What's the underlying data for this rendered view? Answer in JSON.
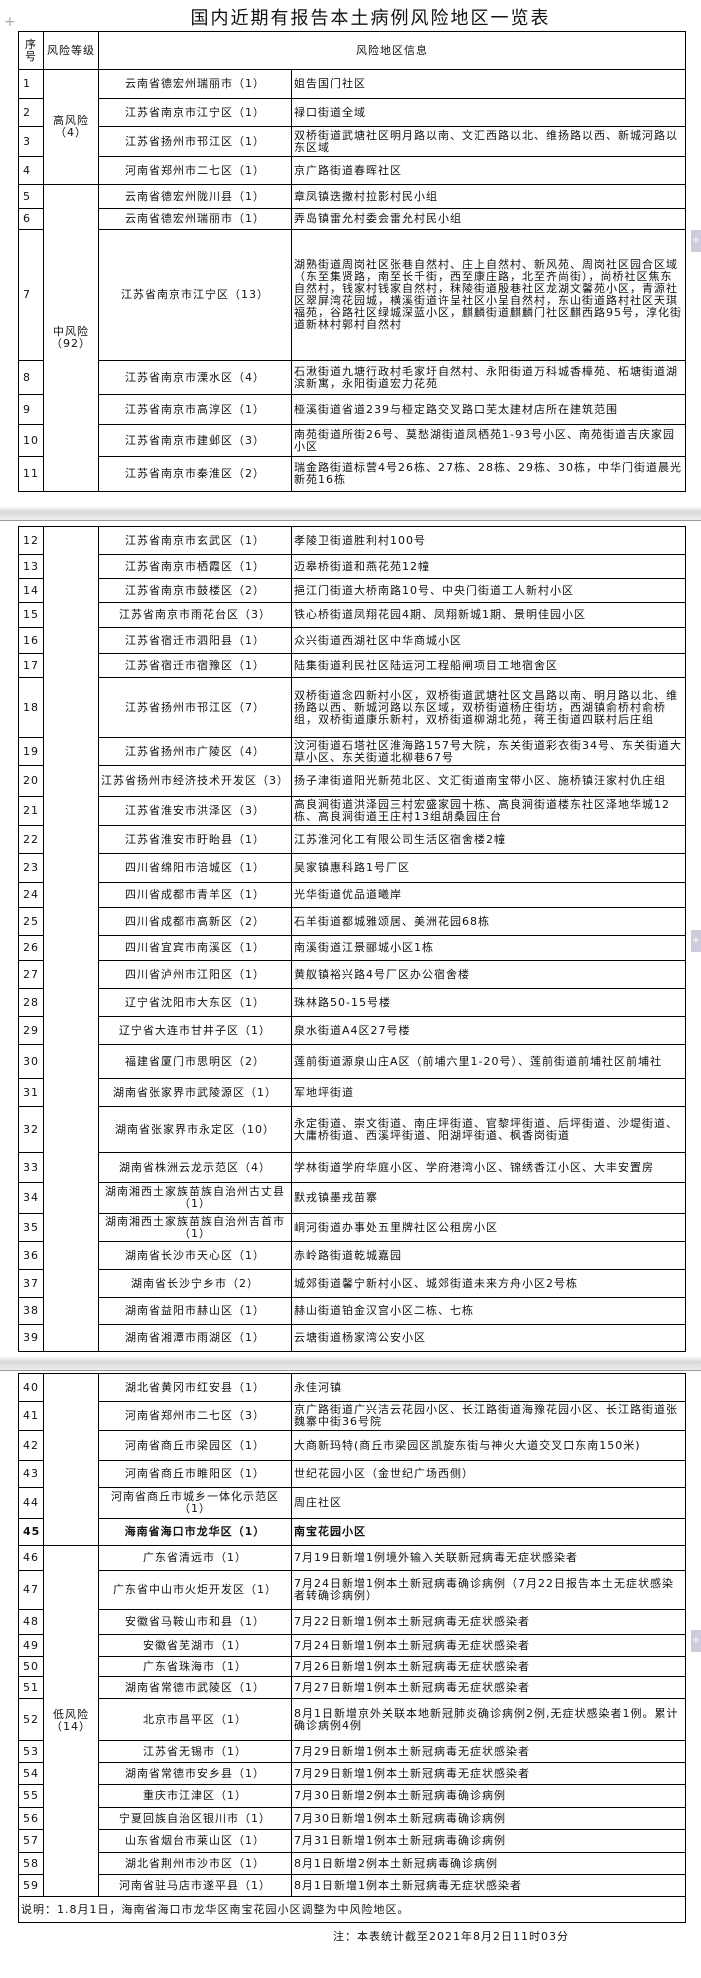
{
  "title": "国内近期有报告本土病例风险地区一览表",
  "header": {
    "no": "序号",
    "level": "风险等级",
    "info": "风险地区信息"
  },
  "levels": {
    "high": "高风险（4）",
    "medium": "中风险（92）",
    "low": "低风险（14）"
  },
  "rows": [
    {
      "no": "1",
      "region": "云南省德宏州瑞丽市（1）",
      "info": "姐告国门社区"
    },
    {
      "no": "2",
      "region": "江苏省南京市江宁区（1）",
      "info": "禄口街道全域"
    },
    {
      "no": "3",
      "region": "江苏省扬州市邗江区（1）",
      "info": "双桥街道武塘社区明月路以南、文汇西路以北、维扬路以西、新城河路以东区域"
    },
    {
      "no": "4",
      "region": "河南省郑州市二七区（1）",
      "info": "京广路街道春晖社区"
    },
    {
      "no": "5",
      "region": "云南省德宏州陇川县（1）",
      "info": "章凤镇迭撒村拉影村民小组"
    },
    {
      "no": "6",
      "region": "云南省德宏州瑞丽市（1）",
      "info": "弄岛镇雷允村委会雷允村民小组"
    },
    {
      "no": "7",
      "region": "江苏省南京市江宁区（13）",
      "info": "湖熟街道周岗社区张巷自然村、庄上自然村、新风苑、周岗社区园合区域（东至集贤路，南至长千街，西至康庄路，北至齐尚街），尚桥社区焦东自然村，钱家村钱家自然村，秣陵街道殷巷社区龙湖文馨苑小区，青源社区翠屏湾花园城，横溪街道许呈社区小呈自然村，东山街道路村社区天琪福苑，谷路社区绿城深蓝小区，麒麟街道麒麟门社区麒西路95号，淳化街道新林村郭村自然村"
    },
    {
      "no": "8",
      "region": "江苏省南京市溧水区（4）",
      "info": "石湫街道九塘行政村毛家圩自然村、永阳街道万科城香樟苑、柘塘街道湖滨新寓，永阳街道宏力花苑"
    },
    {
      "no": "9",
      "region": "江苏省南京市高淳区（1）",
      "info": "桠溪街道省道239与桠定路交叉路口芜太建材店所在建筑范围"
    },
    {
      "no": "10",
      "region": "江苏省南京市建邺区（3）",
      "info": "南苑街道所街26号、莫愁湖街道凤栖苑1-93号小区、南苑街道吉庆家园小区"
    },
    {
      "no": "11",
      "region": "江苏省南京市秦淮区（2）",
      "info": "瑞金路街道标营4号26栋、27栋、28栋、29栋、30栋，中华门街道晨光新苑16栋"
    },
    {
      "no": "12",
      "region": "江苏省南京市玄武区（1）",
      "info": "孝陵卫街道胜利村100号"
    },
    {
      "no": "13",
      "region": "江苏省南京市栖霞区（1）",
      "info": "迈皋桥街道和燕花苑12幢"
    },
    {
      "no": "14",
      "region": "江苏省南京市鼓楼区（2）",
      "info": "挹江门街道大桥南路10号、中央门街道工人新村小区"
    },
    {
      "no": "15",
      "region": "江苏省南京市雨花台区（3）",
      "info": "铁心桥街道凤翔花园4期、凤翔新城1期、景明佳园小区"
    },
    {
      "no": "16",
      "region": "江苏省宿迁市泗阳县（1）",
      "info": "众兴街道西湖社区中华商城小区"
    },
    {
      "no": "17",
      "region": "江苏省宿迁市宿豫区（1）",
      "info": "陆集街道利民社区陆运河工程船闸项目工地宿舍区"
    },
    {
      "no": "18",
      "region": "江苏省扬州市邗江区（7）",
      "info": "双桥街道念四新村小区，双桥街道武塘社区文昌路以南、明月路以北、维扬路以西、新城河路以东区域，双桥街道杨庄街坊，西湖镇俞桥村俞桥组，双桥街道康乐新村，双桥街道柳湖北苑，蒋王街道四联村后庄组"
    },
    {
      "no": "19",
      "region": "江苏省扬州市广陵区（4）",
      "info": "汶河街道石塔社区淮海路157号大院，东关街道彩衣街34号、东关街道大草小区、东关街道北柳巷67号"
    },
    {
      "no": "20",
      "region": "江苏省扬州市经济技术开发区（3）",
      "info": "扬子津街道阳光新苑北区、文汇街道南宝带小区、施桥镇汪家村仇庄组"
    },
    {
      "no": "21",
      "region": "江苏省淮安市洪泽区（3）",
      "info": "高良涧街道洪泽园三村宏盛家园十栋、高良涧街道楼东社区泽地华城12栋、高良涧街道王庄村13组胡桑园庄台"
    },
    {
      "no": "22",
      "region": "江苏省淮安市盱眙县（1）",
      "info": "江苏淮河化工有限公司生活区宿舍楼2幢"
    },
    {
      "no": "23",
      "region": "四川省绵阳市涪城区（1）",
      "info": "吴家镇惠科路1号厂区"
    },
    {
      "no": "24",
      "region": "四川省成都市青羊区（1）",
      "info": "光华街道优品道曦岸"
    },
    {
      "no": "25",
      "region": "四川省成都市高新区（2）",
      "info": "石羊街道都城雅颂居、美洲花园68栋"
    },
    {
      "no": "26",
      "region": "四川省宜宾市南溪区（1）",
      "info": "南溪街道江景郦城小区1栋"
    },
    {
      "no": "27",
      "region": "四川省泸州市江阳区（1）",
      "info": "黄舣镇裕兴路4号厂区办公宿舍楼"
    },
    {
      "no": "28",
      "region": "辽宁省沈阳市大东区（1）",
      "info": "珠林路50-15号楼"
    },
    {
      "no": "29",
      "region": "辽宁省大连市甘井子区（1）",
      "info": "泉水街道A4区27号楼"
    },
    {
      "no": "30",
      "region": "福建省厦门市思明区（2）",
      "info": "莲前街道源泉山庄A区（前埔六里1-20号）、莲前街道前埔社区前埔社"
    },
    {
      "no": "31",
      "region": "湖南省张家界市武陵源区（1）",
      "info": "军地坪街道"
    },
    {
      "no": "32",
      "region": "湖南省张家界市永定区（10）",
      "info": "永定街道、崇文街道、南庄坪街道、官黎坪街道、后坪街道、沙堤街道、大庸桥街道、西溪坪街道、阳湖坪街道、枫香岗街道"
    },
    {
      "no": "33",
      "region": "湖南省株洲云龙示范区（4）",
      "info": "学林街道学府华庭小区、学府港湾小区、锦绣香江小区、大丰安置房"
    },
    {
      "no": "34",
      "region": "湖南湘西土家族苗族自治州古丈县（1）",
      "info": "默戎镇墨戎苗寨"
    },
    {
      "no": "35",
      "region": "湖南湘西土家族苗族自治州吉首市（1）",
      "info": "峒河街道办事处五里牌社区公租房小区"
    },
    {
      "no": "36",
      "region": "湖南省长沙市天心区（1）",
      "info": "赤岭路街道乾城嘉园"
    },
    {
      "no": "37",
      "region": "湖南省长沙宁乡市（2）",
      "info": "城郊街道馨宁新村小区、城郊街道未来方舟小区2号栋"
    },
    {
      "no": "38",
      "region": "湖南省益阳市赫山区（1）",
      "info": "赫山街道铂金汉宫小区二栋、七栋"
    },
    {
      "no": "39",
      "region": "湖南省湘潭市雨湖区（1）",
      "info": "云塘街道杨家湾公安小区"
    },
    {
      "no": "40",
      "region": "湖北省黄冈市红安县（1）",
      "info": "永佳河镇"
    },
    {
      "no": "41",
      "region": "河南省郑州市二七区（3）",
      "info": "京广路街道广兴洁云花园小区、长江路街道海豫花园小区、长江路街道张魏寨中街36号院"
    },
    {
      "no": "42",
      "region": "河南省商丘市梁园区（1）",
      "info": "大商新玛特(商丘市梁园区凯旋东街与神火大道交叉口东南150米)"
    },
    {
      "no": "43",
      "region": "河南省商丘市睢阳区（1）",
      "info": "世纪花园小区（金世纪广场西侧）"
    },
    {
      "no": "44",
      "region": "河南省商丘市城乡一体化示范区（1）",
      "info": "周庄社区"
    },
    {
      "no": "45",
      "region": "海南省海口市龙华区（1）",
      "info": "南宝花园小区",
      "bold": true
    },
    {
      "no": "46",
      "region": "广东省清远市（1）",
      "info": "7月19日新增1例境外输入关联新冠病毒无症状感染者"
    },
    {
      "no": "47",
      "region": "广东省中山市火炬开发区（1）",
      "info": "7月24日新增1例本土新冠病毒确诊病例（7月22日报告本土无症状感染者转确诊病例）"
    },
    {
      "no": "48",
      "region": "安徽省马鞍山市和县（1）",
      "info": "7月22日新增1例本土新冠病毒无症状感染者"
    },
    {
      "no": "49",
      "region": "安徽省芜湖市（1）",
      "info": "7月24日新增1例本土新冠病毒无症状感染者"
    },
    {
      "no": "50",
      "region": "广东省珠海市（1）",
      "info": "7月26日新增1例本土新冠病毒无症状感染者"
    },
    {
      "no": "51",
      "region": "湖南省常德市武陵区（1）",
      "info": "7月27日新增1例本土新冠病毒无症状感染者"
    },
    {
      "no": "52",
      "region": "北京市昌平区（1）",
      "info": "8月1日新增京外关联本地新冠肺炎确诊病例2例,无症状感染者1例。累计确诊病例4例"
    },
    {
      "no": "53",
      "region": "江苏省无锡市（1）",
      "info": "7月29日新增1例本土新冠病毒无症状感染者"
    },
    {
      "no": "54",
      "region": "湖南省常德市安乡县（1）",
      "info": "7月29日新增1例本土新冠病毒无症状感染者"
    },
    {
      "no": "55",
      "region": "重庆市江津区（1）",
      "info": "7月30日新增2例本土新冠病毒确诊病例"
    },
    {
      "no": "56",
      "region": "宁夏回族自治区银川市（1）",
      "info": "7月30日新增1例本土新冠病毒确诊病例"
    },
    {
      "no": "57",
      "region": "山东省烟台市莱山区（1）",
      "info": "7月31日新增1例本土新冠病毒确诊病例"
    },
    {
      "no": "58",
      "region": "湖北省荆州市沙市区（1）",
      "info": "8月1日新增2例本土新冠病毒确诊病例"
    },
    {
      "no": "59",
      "region": "河南省驻马店市遂平县（1）",
      "info": "8月1日新增1例本土新冠病毒无症状感染者"
    }
  ],
  "note": "说明：1.8月1日，海南省海口市龙华区南宝花园小区调整为中风险地区。",
  "footnote": "注：本表统计截至2021年8月2日11时03分"
}
